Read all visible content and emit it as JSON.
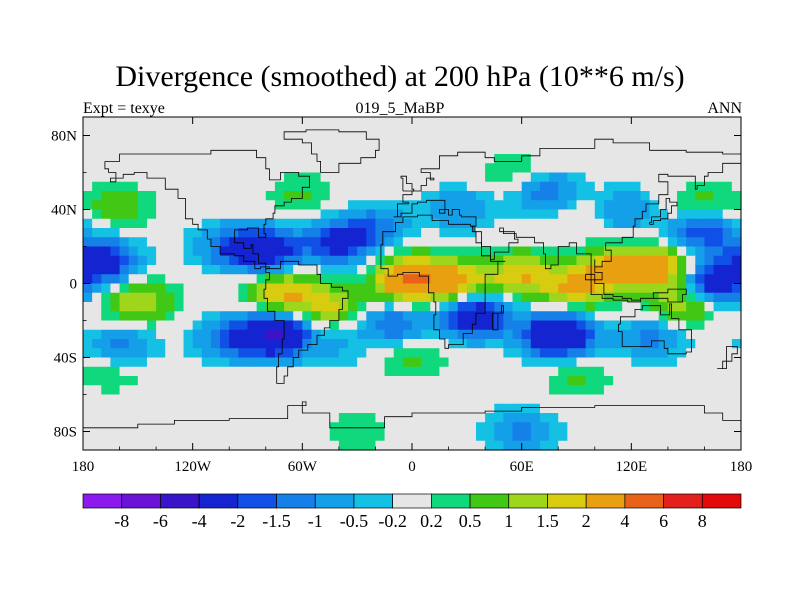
{
  "chart_data": {
    "type": "heatmap",
    "title": "Divergence (smoothed) at 200 hPa (10**6 m/s)",
    "subtitle_left": "Expt = texye",
    "subtitle_center": "019_5_MaBP",
    "subtitle_right": "ANN",
    "x_axis": {
      "range": [
        -180,
        180
      ],
      "ticks": [
        -180,
        -120,
        -60,
        0,
        60,
        120,
        180
      ],
      "tick_labels": [
        "180",
        "120W",
        "60W",
        "0",
        "60E",
        "120E",
        "180"
      ]
    },
    "y_axis": {
      "range": [
        -90,
        90
      ],
      "ticks": [
        80,
        40,
        0,
        -40,
        -80
      ],
      "tick_labels": [
        "80N",
        "40N",
        "0",
        "40S",
        "80S"
      ]
    },
    "colorbar": {
      "labels": [
        "-8",
        "-6",
        "-4",
        "-2",
        "-1.5",
        "-1",
        "-0.5",
        "-0.2",
        "0.2",
        "0.5",
        "1",
        "1.5",
        "2",
        "4",
        "6",
        "8"
      ],
      "colors": [
        "#8b1aec",
        "#6a12d6",
        "#3a14c8",
        "#1424d0",
        "#1050e6",
        "#1480e8",
        "#14a0e8",
        "#14c0e4",
        "#e6e6e6",
        "#10d87c",
        "#40c814",
        "#9ed61c",
        "#d8cc10",
        "#e8a010",
        "#e8621a",
        "#e4201c",
        "#e40a0a"
      ]
    },
    "features": [
      {
        "lon": -160,
        "lat": 42,
        "value": 0.8
      },
      {
        "lon": -170,
        "lat": 12,
        "value": -3
      },
      {
        "lon": -150,
        "lat": -10,
        "value": 1.6
      },
      {
        "lon": -160,
        "lat": -34,
        "value": -1.2
      },
      {
        "lon": -165,
        "lat": -48,
        "value": 0.5
      },
      {
        "lon": -100,
        "lat": 20,
        "value": -1.5
      },
      {
        "lon": -80,
        "lat": 18,
        "value": -3
      },
      {
        "lon": -60,
        "lat": 48,
        "value": 0.6
      },
      {
        "lon": -40,
        "lat": 22,
        "value": -2.5
      },
      {
        "lon": -20,
        "lat": 32,
        "value": -1.2
      },
      {
        "lon": -70,
        "lat": -5,
        "value": 2
      },
      {
        "lon": -45,
        "lat": -12,
        "value": 1.5
      },
      {
        "lon": -75,
        "lat": -28,
        "value": -4
      },
      {
        "lon": -100,
        "lat": -30,
        "value": -1.5
      },
      {
        "lon": -40,
        "lat": -35,
        "value": -0.5
      },
      {
        "lon": -10,
        "lat": -22,
        "value": -1.5
      },
      {
        "lon": 0,
        "lat": 2,
        "value": 4
      },
      {
        "lon": 25,
        "lat": 2,
        "value": 2
      },
      {
        "lon": 35,
        "lat": -18,
        "value": -3
      },
      {
        "lon": 0,
        "lat": -40,
        "value": 0.6
      },
      {
        "lon": 25,
        "lat": 40,
        "value": -1
      },
      {
        "lon": 75,
        "lat": 48,
        "value": -1.5
      },
      {
        "lon": 90,
        "lat": 40,
        "value": 0.6
      },
      {
        "lon": 115,
        "lat": 40,
        "value": -1
      },
      {
        "lon": 55,
        "lat": 60,
        "value": 0.5
      },
      {
        "lon": 60,
        "lat": 5,
        "value": 2
      },
      {
        "lon": 90,
        "lat": -2,
        "value": 2
      },
      {
        "lon": 110,
        "lat": 8,
        "value": 2
      },
      {
        "lon": 80,
        "lat": -28,
        "value": -4
      },
      {
        "lon": 135,
        "lat": 8,
        "value": 2.5
      },
      {
        "lon": 130,
        "lat": -30,
        "value": -1.2
      },
      {
        "lon": 160,
        "lat": 28,
        "value": -2
      },
      {
        "lon": 160,
        "lat": 42,
        "value": 0.8
      },
      {
        "lon": 165,
        "lat": 0,
        "value": -3
      },
      {
        "lon": 150,
        "lat": -10,
        "value": 1.6
      },
      {
        "lon": 90,
        "lat": -50,
        "value": 0.6
      },
      {
        "lon": 60,
        "lat": -80,
        "value": -1.2
      },
      {
        "lon": -30,
        "lat": -80,
        "value": 0.5
      }
    ],
    "grid": false,
    "legend": "bottom"
  }
}
